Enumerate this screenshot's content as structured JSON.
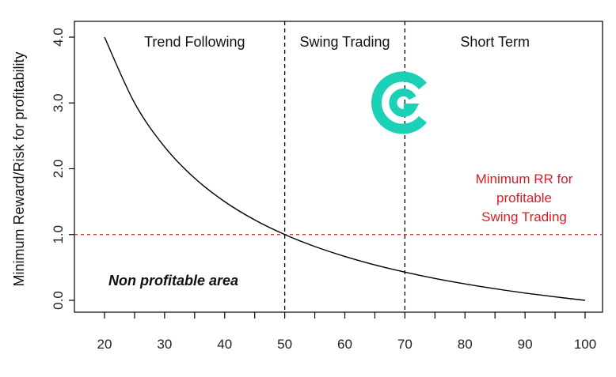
{
  "chart_data": {
    "type": "line",
    "title": "",
    "xlabel": "",
    "ylabel": "Minimum Reward/Risk for profitability",
    "xlim": [
      20,
      100
    ],
    "ylim": [
      0,
      4
    ],
    "x_ticks": [
      20,
      30,
      40,
      50,
      60,
      70,
      80,
      90,
      100
    ],
    "x_tick_labels": [
      "20",
      "30",
      "40",
      "50",
      "60",
      "70",
      "80",
      "90",
      "100"
    ],
    "y_ticks": [
      0,
      1,
      2,
      3,
      4
    ],
    "y_tick_labels": [
      "0.0",
      "1.0",
      "2.0",
      "3.0",
      "4.0"
    ],
    "grid": false,
    "series": [
      {
        "name": "",
        "color": "#000000",
        "x": [
          20,
          25,
          30,
          35,
          40,
          45,
          50,
          55,
          60,
          65,
          70,
          75,
          80,
          85,
          90,
          95,
          100
        ],
        "y": [
          4.0,
          3.0,
          2.333,
          1.857,
          1.5,
          1.222,
          1.0,
          0.818,
          0.667,
          0.538,
          0.429,
          0.333,
          0.25,
          0.176,
          0.111,
          0.053,
          0.0
        ]
      }
    ],
    "vertical_lines": [
      {
        "x": 50,
        "style": "dashed",
        "color": "#000000"
      },
      {
        "x": 70,
        "style": "dashed",
        "color": "#000000"
      }
    ],
    "horizontal_lines": [
      {
        "y": 1.0,
        "style": "dashed",
        "color": "#e01b24"
      }
    ],
    "regions": [
      {
        "label": "Trend Following",
        "x_center": 35
      },
      {
        "label": "Swing Trading",
        "x_center": 60
      },
      {
        "label": "Short Term",
        "x_center": 85
      }
    ],
    "annotations": {
      "min_rr_lines": [
        "Minimum RR for",
        "profitable",
        "Swing Trading"
      ],
      "non_profitable": "Non profitable area"
    }
  },
  "logo": {
    "name": "C logo",
    "color": "#1ad1b6"
  }
}
